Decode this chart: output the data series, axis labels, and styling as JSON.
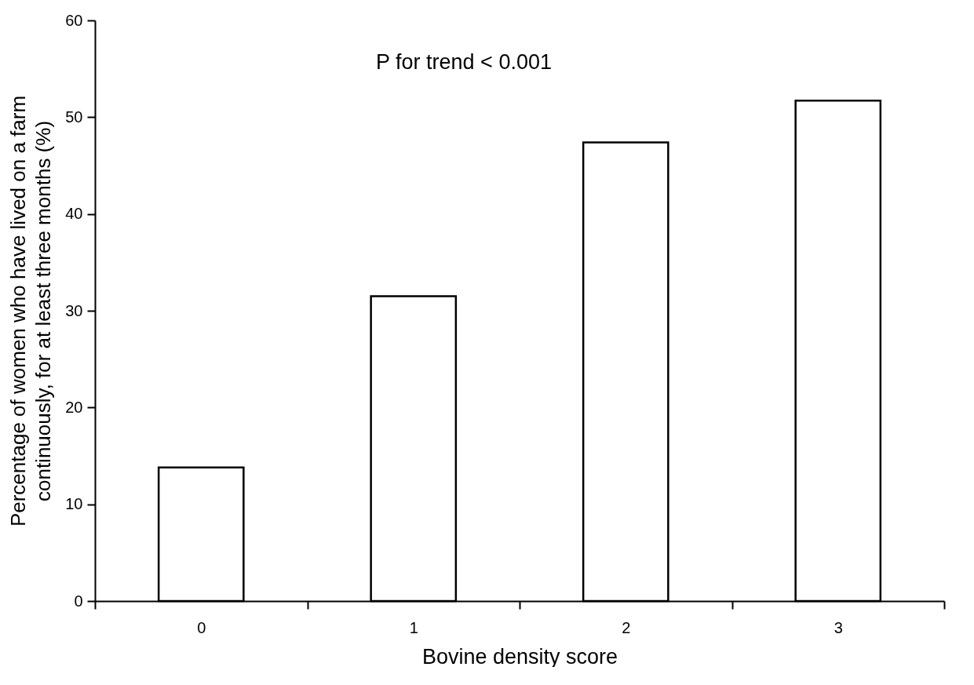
{
  "chart_data": {
    "type": "bar",
    "xlabel": "Bovine density score",
    "ylabel": "Percentage of women who have lived on a farm\ncontinuously, for at least three months (%)",
    "categories": [
      "0",
      "1",
      "2",
      "3"
    ],
    "values": [
      13.8,
      31.5,
      47.4,
      51.7
    ],
    "color": "#ffffff",
    "ylim": [
      0,
      60
    ],
    "yticks": [
      0,
      10,
      20,
      30,
      40,
      50,
      60
    ],
    "grid": false,
    "annotations": [
      "P for trend < 0.001"
    ]
  }
}
